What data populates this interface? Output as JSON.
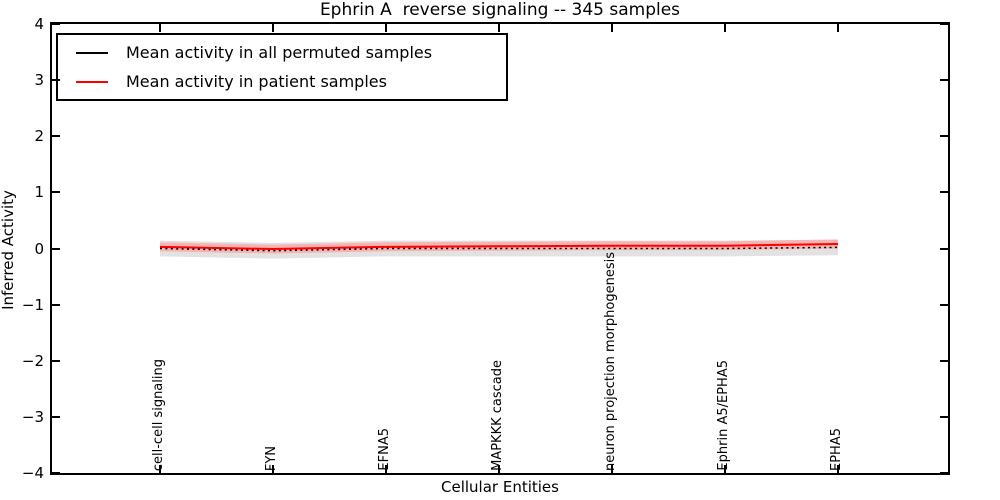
{
  "title": "Ephrin A  reverse signaling -- 345 samples",
  "axes": {
    "ylabel": "Inferred Activity",
    "xlabel": "Cellular Entities",
    "yticks": [
      "4",
      "3",
      "2",
      "1",
      "0",
      "−1",
      "−2",
      "−3",
      "−4"
    ]
  },
  "legend": {
    "items": [
      {
        "label": "Mean activity in all permuted samples",
        "color": "#000000"
      },
      {
        "label": "Mean activity in patient samples",
        "color": "#ff0000"
      }
    ]
  },
  "chart_data": {
    "type": "line",
    "title": "Ephrin A  reverse signaling -- 345 samples",
    "xlabel": "Cellular Entities",
    "ylabel": "Inferred Activity",
    "ylim": [
      -4,
      4
    ],
    "grid": false,
    "legend_position": "upper left",
    "categories": [
      "cell-cell signaling",
      "FYN",
      "EFNA5",
      "MAPKKK cascade",
      "neuron projection morphogenesis",
      "Ephrin A5/EPHA5",
      "EPHA5"
    ],
    "series": [
      {
        "name": "Mean activity in all permuted samples",
        "color": "#000000",
        "linestyle": "dotted",
        "values": [
          0.0,
          -0.04,
          0.0,
          0.0,
          0.0,
          0.0,
          0.02
        ],
        "band_halfwidth": 0.14,
        "band_color": "#e2e2e2"
      },
      {
        "name": "Mean activity in patient samples",
        "color": "#ff0000",
        "linestyle": "solid",
        "values": [
          0.03,
          -0.01,
          0.03,
          0.04,
          0.05,
          0.05,
          0.08
        ],
        "band_halfwidth": 0.08,
        "band_color": "#f6b4b4"
      }
    ]
  }
}
